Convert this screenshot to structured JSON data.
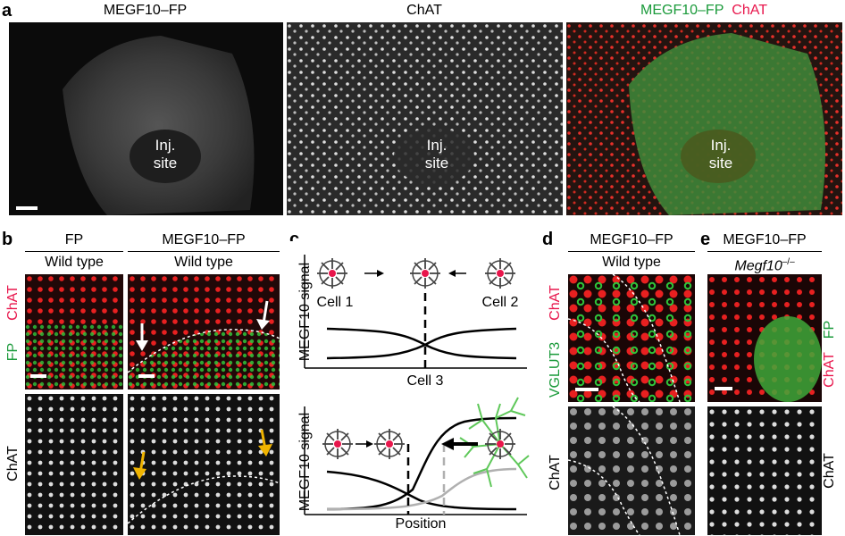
{
  "panel_a": {
    "letter": "a",
    "titles": [
      "MEGF10–FP",
      "ChAT",
      "MEGF10–FP",
      "ChAT"
    ],
    "inj_site": "Inj.\nsite"
  },
  "panel_b": {
    "letter": "b",
    "col1": {
      "title": "FP",
      "subtitle": "Wild type"
    },
    "col2": {
      "title": "MEGF10–FP",
      "subtitle": "Wild type"
    },
    "side_red": "ChAT",
    "side_green": "FP",
    "side_bottom": "ChAT"
  },
  "panel_c": {
    "letter": "c",
    "top": {
      "ylabel": "MEGF10 signal",
      "cell1": "Cell 1",
      "cell2": "Cell 2",
      "cell3": "Cell 3"
    },
    "bottom": {
      "ylabel": "MEGF10 signal",
      "xlabel": "Position"
    }
  },
  "panel_d": {
    "letter": "d",
    "title": "MEGF10–FP",
    "subtitle": "Wild type",
    "side_red": "ChAT",
    "side_green": "VGLUT3",
    "side_bottom": "ChAT"
  },
  "panel_e": {
    "letter": "e",
    "title": "MEGF10–FP",
    "subtitle": "Megf10",
    "subtitle_sup": "–/–",
    "side_green": "FP",
    "side_red": "ChAT",
    "side_bottom": "ChAT"
  },
  "colors": {
    "red": "#e8164c",
    "green": "#1a9a3a",
    "arrow_yellow": "#f0b400",
    "gray_curve": "#b0b0b0"
  }
}
